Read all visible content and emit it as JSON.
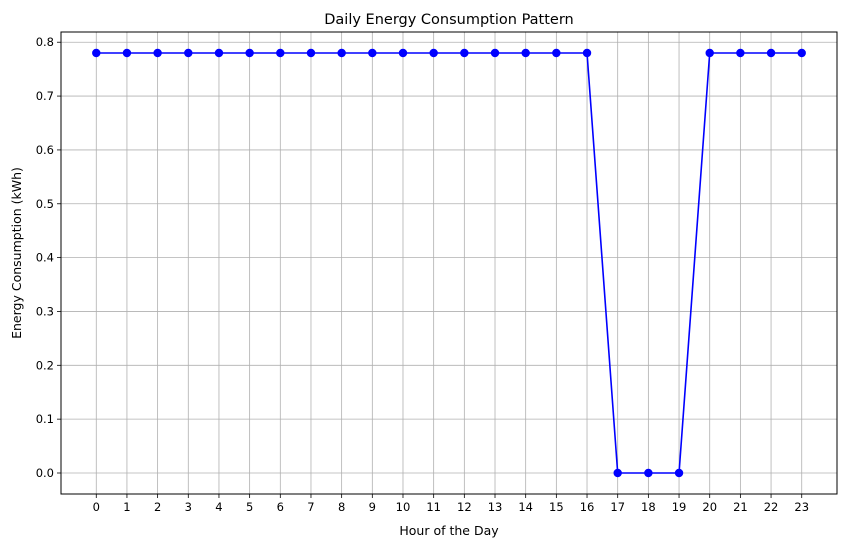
{
  "chart_data": {
    "type": "line",
    "title": "Daily Energy Consumption Pattern",
    "xlabel": "Hour of the Day",
    "ylabel": "Energy Consumption (kWh)",
    "x": [
      0,
      1,
      2,
      3,
      4,
      5,
      6,
      7,
      8,
      9,
      10,
      11,
      12,
      13,
      14,
      15,
      16,
      17,
      18,
      19,
      20,
      21,
      22,
      23
    ],
    "series": [
      {
        "values": [
          0.78,
          0.78,
          0.78,
          0.78,
          0.78,
          0.78,
          0.78,
          0.78,
          0.78,
          0.78,
          0.78,
          0.78,
          0.78,
          0.78,
          0.78,
          0.78,
          0.78,
          0.0,
          0.0,
          0.0,
          0.78,
          0.78,
          0.78,
          0.78
        ],
        "color": "#0000ff",
        "marker": "circle"
      }
    ],
    "xlim": [
      -1.15,
      24.15
    ],
    "ylim": [
      -0.039,
      0.819
    ],
    "yticks": [
      0.0,
      0.1,
      0.2,
      0.3,
      0.4,
      0.5,
      0.6,
      0.7,
      0.8
    ],
    "ytick_labels": [
      "0.0",
      "0.1",
      "0.2",
      "0.3",
      "0.4",
      "0.5",
      "0.6",
      "0.7",
      "0.8"
    ],
    "xticks": [
      0,
      1,
      2,
      3,
      4,
      5,
      6,
      7,
      8,
      9,
      10,
      11,
      12,
      13,
      14,
      15,
      16,
      17,
      18,
      19,
      20,
      21,
      22,
      23
    ],
    "xtick_labels": [
      "0",
      "1",
      "2",
      "3",
      "4",
      "5",
      "6",
      "7",
      "8",
      "9",
      "10",
      "11",
      "12",
      "13",
      "14",
      "15",
      "16",
      "17",
      "18",
      "19",
      "20",
      "21",
      "22",
      "23"
    ],
    "grid": true,
    "grid_color": "#b0b0b0",
    "axis_color": "#000000"
  }
}
